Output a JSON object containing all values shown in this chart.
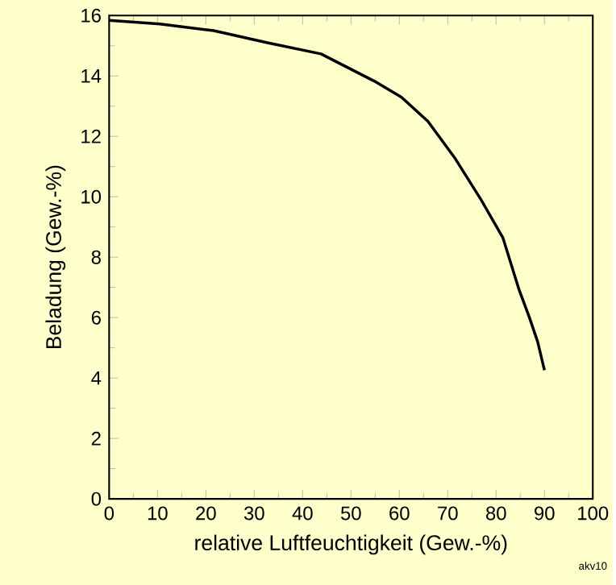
{
  "chart_data": {
    "type": "line",
    "xlabel": "relative Luftfeuchtigkeit (Gew.-%)",
    "ylabel": "Beladung (Gew.-%)",
    "x": [
      0,
      10.5,
      21.6,
      32.7,
      43.8,
      49.3,
      54.8,
      60.4,
      65.9,
      71.4,
      76.9,
      81.4,
      84.7,
      86.9,
      88.6,
      90
    ],
    "series": [
      {
        "color": "#000000",
        "values": [
          15.84,
          15.72,
          15.5,
          15.1,
          14.73,
          14.28,
          13.83,
          13.3,
          12.5,
          11.3,
          9.9,
          8.65,
          6.95,
          6.0,
          5.2,
          4.26
        ]
      }
    ],
    "xlim": [
      0,
      100
    ],
    "ylim": [
      0,
      16
    ],
    "xticks": [
      0,
      10,
      20,
      30,
      40,
      50,
      60,
      70,
      80,
      90,
      100
    ],
    "yticks": [
      0,
      2,
      4,
      6,
      8,
      10,
      12,
      14,
      16
    ],
    "grid": false,
    "marker": "none",
    "line_style": "solid",
    "annotations": [
      "akv10"
    ]
  }
}
